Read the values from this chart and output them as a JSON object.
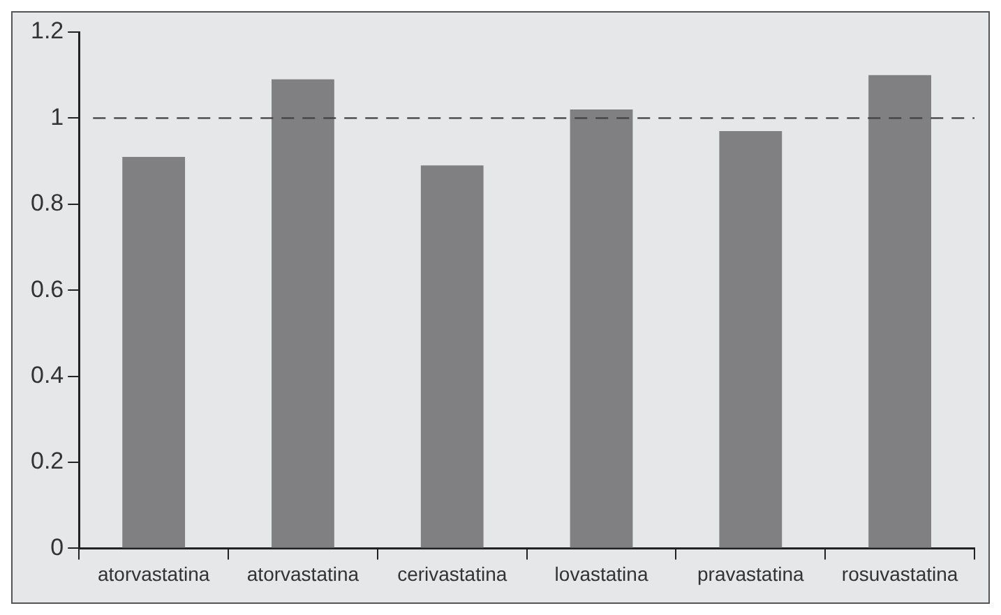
{
  "chart_data": {
    "type": "bar",
    "categories": [
      "atorvastatina",
      "atorvastatina",
      "cerivastatina",
      "lovastatina",
      "pravastatina",
      "rosuvastatina"
    ],
    "values": [
      0.91,
      1.09,
      0.89,
      1.02,
      0.97,
      1.1
    ],
    "color": "#808083",
    "ylim": [
      0,
      1.2
    ],
    "yticks": [
      0,
      0.2,
      0.4,
      0.6,
      0.8,
      1,
      1.2
    ],
    "grid": false,
    "ref_lines": [
      {
        "axis": "y",
        "value": 1,
        "color": "#404040",
        "line_style": "dashed"
      }
    ]
  }
}
